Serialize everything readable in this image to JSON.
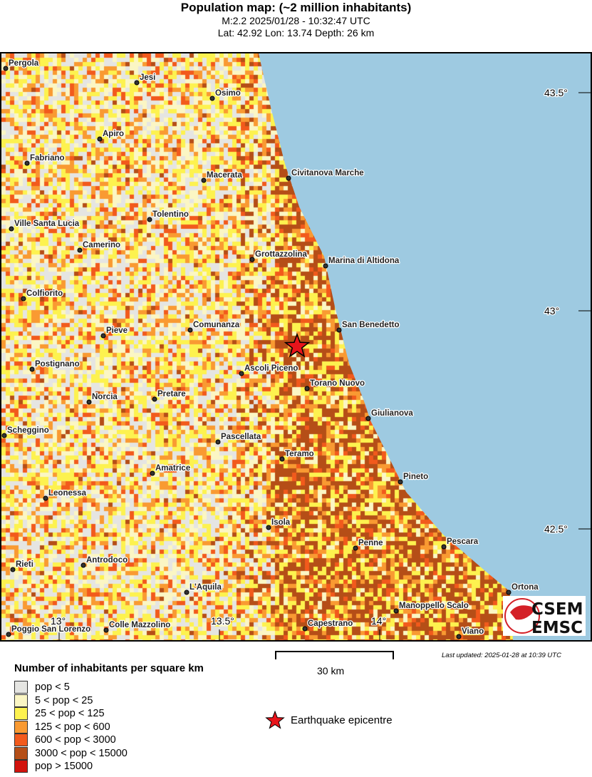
{
  "header": {
    "title": "Population map: (~2 million inhabitants)",
    "line1": "M:2.2 2025/01/28 - 10:32:47 UTC",
    "line2": "Lat: 42.92 Lon: 13.74 Depth: 26 km"
  },
  "map": {
    "lat_ticks": [
      "43.5°",
      "43°",
      "42.5°"
    ],
    "lon_ticks": [
      "13°",
      "13.5°",
      "14°"
    ],
    "cities": [
      "Pergola",
      "Jesi",
      "Osimo",
      "Apiro",
      "Fabriano",
      "Macerata",
      "Civitanova Marche",
      "Tolentino",
      "Ville Santa Lucia",
      "Camerino",
      "Grottazzolina",
      "Marina di Altidona",
      "Colfiorito",
      "Comunanza",
      "San Benedetto",
      "Pieve",
      "Postignano",
      "Ascoli Piceno",
      "Torano Nuovo",
      "Norcia",
      "Pretare",
      "Giulianova",
      "Scheggino",
      "Pascellata",
      "Teramo",
      "Amatrice",
      "Pineto",
      "Leonessa",
      "Isola",
      "Penne",
      "Pescara",
      "Antrodoco",
      "Rieti",
      "L'Aquila",
      "Ortona",
      "Manoppello Scalo",
      "Poggio San Lorenzo",
      "Colle Mazzolino",
      "Capestrano",
      "Viano"
    ],
    "epicentre": {
      "lat": 42.92,
      "lon": 13.74
    },
    "sea_color": "#9ecae1",
    "logo_text": "CSEM EMSC"
  },
  "footer": {
    "last_updated": "Last updated: 2025-01-28 at 10:39 UTC",
    "scale_label": "30 km"
  },
  "legend": {
    "title": "Number of inhabitants per square km",
    "items": [
      {
        "label": "pop < 5",
        "color": "#e5e5e2"
      },
      {
        "label": "5 < pop < 25",
        "color": "#fbf6c4"
      },
      {
        "label": "25 < pop < 125",
        "color": "#fdf24f"
      },
      {
        "label": "125 < pop < 600",
        "color": "#f99a32"
      },
      {
        "label": "600 < pop < 3000",
        "color": "#f25a1c"
      },
      {
        "label": "3000 < pop < 15000",
        "color": "#b54e17"
      },
      {
        "label": "pop > 15000",
        "color": "#d2130d"
      }
    ],
    "epicentre_label": "Earthquake epicentre"
  }
}
